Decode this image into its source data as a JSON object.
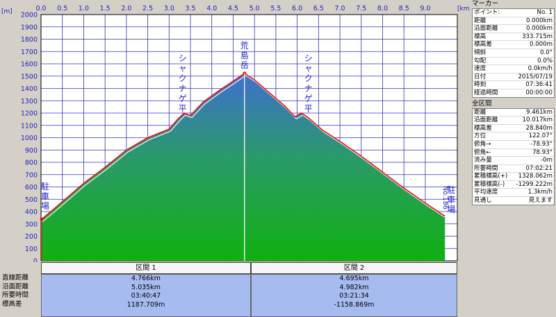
{
  "chart_data": {
    "type": "area",
    "x_unit": "[km]",
    "y_unit": "[m]",
    "xlim": [
      0,
      9.75
    ],
    "ylim": [
      0,
      2000
    ],
    "x_ticks": [
      "0.0",
      "0.5",
      "1.0",
      "1.5",
      "2.0",
      "2.5",
      "3.0",
      "3.5",
      "4.0",
      "4.5",
      "5.0",
      "5.5",
      "6.0",
      "6.5",
      "7.0",
      "7.5",
      "8.0",
      "8.5",
      "9.0"
    ],
    "y_ticks": [
      "2000",
      "1900",
      "1800",
      "1700",
      "1600",
      "1500",
      "1400",
      "1300",
      "1200",
      "1100",
      "1000",
      "900",
      "800",
      "700",
      "600",
      "500",
      "400",
      "300",
      "200",
      "100",
      "0"
    ],
    "grid": true,
    "profile": {
      "x": [
        0,
        0.3,
        0.6,
        1.0,
        1.5,
        2.0,
        2.5,
        3.0,
        3.2,
        3.35,
        3.5,
        3.8,
        4.2,
        4.5,
        4.766,
        5.0,
        5.3,
        5.7,
        5.95,
        6.1,
        6.25,
        6.6,
        7.0,
        7.5,
        8.0,
        8.5,
        9.0,
        9.461
      ],
      "y": [
        334,
        420,
        510,
        630,
        760,
        900,
        1000,
        1070,
        1150,
        1200,
        1180,
        1290,
        1390,
        1460,
        1522,
        1470,
        1380,
        1260,
        1170,
        1200,
        1165,
        1060,
        970,
        850,
        720,
        590,
        470,
        362
      ]
    },
    "annotations": [
      {
        "label": "駐車場",
        "x": 0
      },
      {
        "label": "シャクナゲ平",
        "x": 3.35
      },
      {
        "label": "荒島岳",
        "x": 4.766
      },
      {
        "label": "シャクナゲ平",
        "x": 6.1
      },
      {
        "label": "駐車場",
        "x": 9.461
      },
      {
        "label": "No.186",
        "x": 9.461
      }
    ]
  },
  "segments": {
    "headers": [
      "区間 1",
      "区間 2"
    ],
    "row_labels": [
      "直線距離",
      "沿面距離",
      "所要時間",
      "標高差"
    ],
    "values": [
      [
        "4.766km",
        "5.035km",
        "03:40:47",
        "1187.709m"
      ],
      [
        "4.695km",
        "4.982km",
        "03:21:34",
        "-1158.869m"
      ]
    ]
  },
  "panel": {
    "marker_title": "マーカー",
    "marker_rows": [
      {
        "label": "ポイント:",
        "value": "No. 1"
      },
      {
        "label": "距離",
        "value": "0.000km"
      },
      {
        "label": "沿面距離",
        "value": "0.000km"
      },
      {
        "label": "標高",
        "value": "333.715m"
      },
      {
        "label": "標高差",
        "value": "0.000m"
      },
      {
        "label": "傾斜",
        "value": "0.0°"
      },
      {
        "label": "勾配",
        "value": "0.0%"
      },
      {
        "label": "速度",
        "value": "0.0km/h"
      },
      {
        "label": "日付",
        "value": "2015/07/19"
      },
      {
        "label": "時刻",
        "value": "07:36:41"
      },
      {
        "label": "経過時間",
        "value": "00:00:00"
      }
    ],
    "all_title": "全区間",
    "all_rows": [
      {
        "label": "距離",
        "value": "9.461km"
      },
      {
        "label": "沿面距離",
        "value": "10.017km"
      },
      {
        "label": "標高差",
        "value": "28.840m"
      },
      {
        "label": "方位",
        "value": "122.07°"
      },
      {
        "label": "俯角→",
        "value": "-78.93°"
      },
      {
        "label": "俯角←",
        "value": "78.93°"
      },
      {
        "label": "流み量",
        "value": "-0m"
      },
      {
        "label": "所要時間",
        "value": "07:02:21"
      },
      {
        "label": "累積標高(+)",
        "value": "1328.062m"
      },
      {
        "label": "累積標高(-)",
        "value": "-1299.222m"
      },
      {
        "label": "平均速度",
        "value": "1.3km/h"
      },
      {
        "label": "見通し",
        "value": "見えます"
      }
    ]
  }
}
